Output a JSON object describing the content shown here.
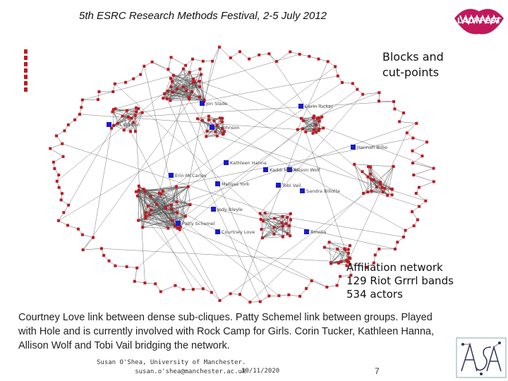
{
  "title": "5th ESRC Research Methods Festival, 2-5 July 2012",
  "heading": [
    "Blocks and",
    "cut-points"
  ],
  "logo_text": "LADYFEST",
  "affiliation": [
    "Affiliation network",
    "129 Riot Grrrl bands",
    "534 actors"
  ],
  "body": "Courtney Love link between dense sub-cliques. Patty Schemel link between groups. Played with Hole and is currently involved with Rock Camp for Girls. Corin Tucker, Kathleen Hanna, Allison Wolf and Tobi Vail bridging the network.",
  "footer": {
    "author": "Susan O'Shea, University of Manchester.",
    "email": "susan.o'shea@manchester.ac.uk",
    "date": "30/11/2020",
    "page": "7"
  },
  "colors": {
    "node": "#c0181f",
    "cutpoint": "#1a1ad0",
    "edge": "#555555",
    "logo": "#c2185b"
  },
  "network": {
    "labels": [
      "Jon Slade",
      "Corin Tucker",
      "Lois Gibbon",
      "Jo Johnson",
      "Hannah Billie",
      "Kathleen Hanna",
      "Kaddi Milton",
      "Allison Wolf",
      "Erin McCarley",
      "Melissa York",
      "Tobi Vail",
      "Sandra Billotte",
      "Jody Bleyle",
      "Patty Schemel",
      "Courtney Love",
      "Amelia"
    ]
  }
}
